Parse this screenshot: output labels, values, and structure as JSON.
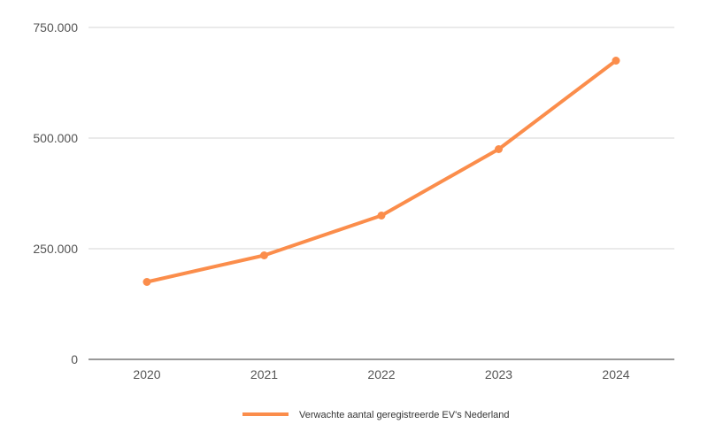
{
  "chart_data": {
    "type": "line",
    "categories": [
      "2020",
      "2021",
      "2022",
      "2023",
      "2024"
    ],
    "series": [
      {
        "name": "Verwachte aantal geregistreerde EV's Nederland",
        "values": [
          175000,
          235000,
          325000,
          475000,
          675000
        ],
        "color": "#fb8d4b"
      }
    ],
    "y_ticks": [
      {
        "value": 0,
        "label": "0"
      },
      {
        "value": 250000,
        "label": "250.000"
      },
      {
        "value": 500000,
        "label": "500.000"
      },
      {
        "value": 750000,
        "label": "750.000"
      }
    ],
    "ylim": [
      0,
      750000
    ],
    "grid": true,
    "legend_position": "bottom-center",
    "title": "",
    "xlabel": "",
    "ylabel": ""
  }
}
